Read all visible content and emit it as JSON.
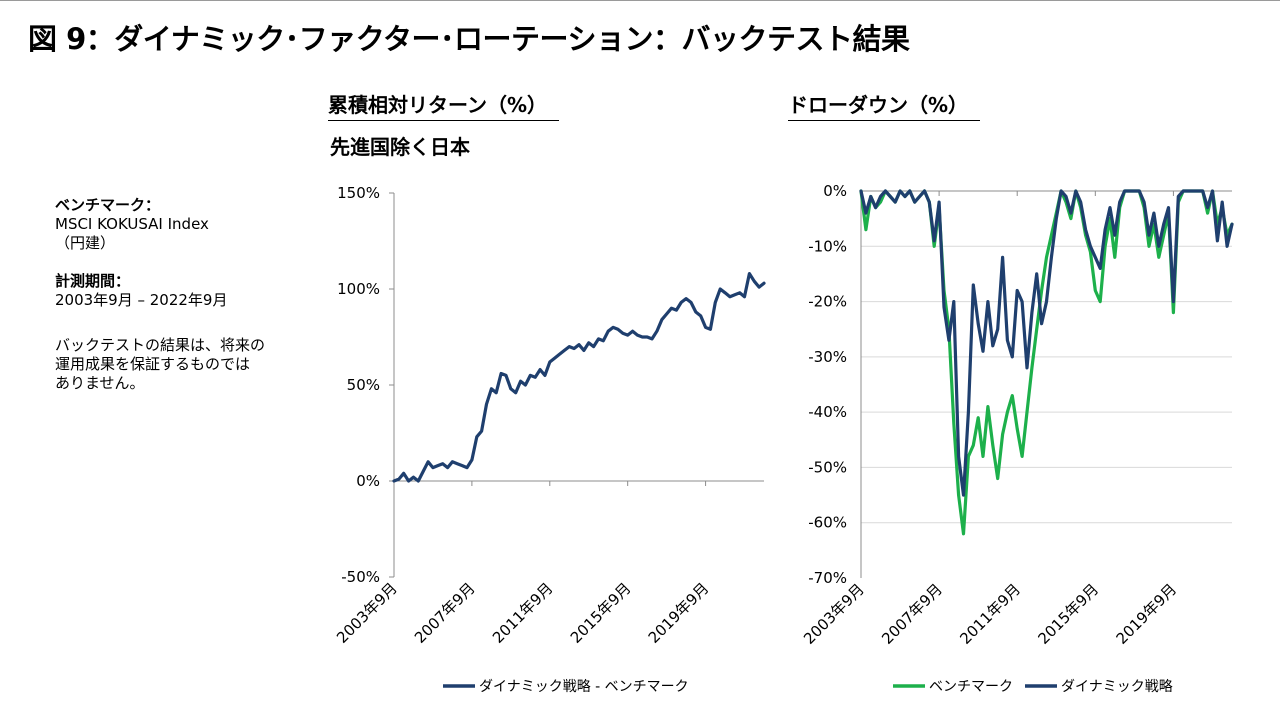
{
  "page": {
    "title": "図 9：ダイナミック･ファクター･ローテーション：バックテスト結果"
  },
  "sidebar": {
    "benchmark_label": "ベンチマーク：",
    "benchmark_value": "MSCI KOKUSAI Index",
    "benchmark_note": "（円建）",
    "period_label": "計測期間：",
    "period_value": "2003年9月 – 2022年9月",
    "disclaimer_line1": "バックテストの結果は、将来の",
    "disclaimer_line2": "運用成果を保証するものでは",
    "disclaimer_line3": "ありません。"
  },
  "left_panel": {
    "heading": "累積相対リターン（%）",
    "subheading": "先進国除く日本"
  },
  "right_panel": {
    "heading": "ドローダウン（%）"
  },
  "colors": {
    "dynamic": "#1f3f6e",
    "benchmark": "#1db04b",
    "axis": "#8c8c8c",
    "grid": "#d9d9d9"
  },
  "chart_data": [
    {
      "type": "line",
      "title": "累積相対リターン（%）",
      "subtitle": "先進国除く日本",
      "ylim": [
        -50,
        150
      ],
      "yticks": [
        -50,
        0,
        50,
        100,
        150
      ],
      "ytick_labels": [
        "-50%",
        "0%",
        "50%",
        "100%",
        "150%"
      ],
      "xlim": [
        2003.75,
        2022.75
      ],
      "xticks": [
        2003.75,
        2007.75,
        2011.75,
        2015.75,
        2019.75
      ],
      "xtick_labels": [
        "2003年9月",
        "2007年9月",
        "2011年9月",
        "2015年9月",
        "2019年9月"
      ],
      "grid": false,
      "legend": "bottom",
      "series": [
        {
          "name": "ダイナミック戦略 - ベンチマーク",
          "x": [
            2003.75,
            2004.0,
            2004.25,
            2004.5,
            2004.75,
            2005.0,
            2005.25,
            2005.5,
            2005.75,
            2006.0,
            2006.25,
            2006.5,
            2006.75,
            2007.0,
            2007.25,
            2007.5,
            2007.75,
            2008.0,
            2008.25,
            2008.5,
            2008.75,
            2009.0,
            2009.25,
            2009.5,
            2009.75,
            2010.0,
            2010.25,
            2010.5,
            2010.75,
            2011.0,
            2011.25,
            2011.5,
            2011.75,
            2012.0,
            2012.25,
            2012.5,
            2012.75,
            2013.0,
            2013.25,
            2013.5,
            2013.75,
            2014.0,
            2014.25,
            2014.5,
            2014.75,
            2015.0,
            2015.25,
            2015.5,
            2015.75,
            2016.0,
            2016.25,
            2016.5,
            2016.75,
            2017.0,
            2017.25,
            2017.5,
            2017.75,
            2018.0,
            2018.25,
            2018.5,
            2018.75,
            2019.0,
            2019.25,
            2019.5,
            2019.75,
            2020.0,
            2020.25,
            2020.5,
            2020.75,
            2021.0,
            2021.25,
            2021.5,
            2021.75,
            2022.0,
            2022.25,
            2022.5,
            2022.75
          ],
          "values": [
            0,
            1,
            4,
            0,
            2,
            0,
            5,
            10,
            7,
            8,
            9,
            7,
            10,
            9,
            8,
            7,
            11,
            23,
            26,
            40,
            48,
            46,
            56,
            55,
            48,
            46,
            52,
            50,
            55,
            54,
            58,
            55,
            62,
            64,
            66,
            68,
            70,
            69,
            71,
            68,
            72,
            70,
            74,
            73,
            78,
            80,
            79,
            77,
            76,
            78,
            76,
            75,
            75,
            74,
            78,
            84,
            87,
            90,
            89,
            93,
            95,
            93,
            88,
            86,
            80,
            79,
            93,
            100,
            98,
            96,
            97,
            98,
            96,
            108,
            104,
            101,
            103
          ]
        }
      ]
    },
    {
      "type": "line",
      "title": "ドローダウン（%）",
      "ylim": [
        -70,
        0
      ],
      "yticks": [
        -70,
        -60,
        -50,
        -40,
        -30,
        -20,
        -10,
        0
      ],
      "ytick_labels": [
        "-70%",
        "-60%",
        "-50%",
        "-40%",
        "-30%",
        "-20%",
        "-10%",
        "0%"
      ],
      "xlim": [
        2003.75,
        2022.75
      ],
      "xticks": [
        2003.75,
        2007.75,
        2011.75,
        2015.75,
        2019.75
      ],
      "xtick_labels": [
        "2003年9月",
        "2007年9月",
        "2011年9月",
        "2015年9月",
        "2019年9月"
      ],
      "grid": true,
      "legend": "bottom",
      "series": [
        {
          "name": "ベンチマーク",
          "x": [
            2003.75,
            2004.0,
            2004.25,
            2004.5,
            2004.75,
            2005.0,
            2005.25,
            2005.5,
            2005.75,
            2006.0,
            2006.25,
            2006.5,
            2006.75,
            2007.0,
            2007.25,
            2007.5,
            2007.75,
            2008.0,
            2008.25,
            2008.5,
            2008.75,
            2009.0,
            2009.25,
            2009.5,
            2009.75,
            2010.0,
            2010.25,
            2010.5,
            2010.75,
            2011.0,
            2011.25,
            2011.5,
            2011.75,
            2012.0,
            2012.25,
            2012.5,
            2012.75,
            2013.0,
            2013.25,
            2013.5,
            2013.75,
            2014.0,
            2014.25,
            2014.5,
            2014.75,
            2015.0,
            2015.25,
            2015.5,
            2015.75,
            2016.0,
            2016.25,
            2016.5,
            2016.75,
            2017.0,
            2017.25,
            2017.5,
            2017.75,
            2018.0,
            2018.25,
            2018.5,
            2018.75,
            2019.0,
            2019.25,
            2019.5,
            2019.75,
            2020.0,
            2020.25,
            2020.5,
            2020.75,
            2021.0,
            2021.25,
            2021.5,
            2021.75,
            2022.0,
            2022.25,
            2022.5,
            2022.75
          ],
          "values": [
            0,
            -7,
            -1,
            -3,
            -2,
            0,
            -1,
            -2,
            0,
            -1,
            0,
            -2,
            -1,
            0,
            -2,
            -10,
            -3,
            -18,
            -25,
            -42,
            -55,
            -62,
            -48,
            -46,
            -41,
            -48,
            -39,
            -46,
            -52,
            -44,
            -40,
            -37,
            -43,
            -48,
            -40,
            -32,
            -25,
            -18,
            -12,
            -8,
            -4,
            0,
            -2,
            -5,
            0,
            -3,
            -8,
            -11,
            -18,
            -20,
            -10,
            -5,
            -12,
            -3,
            0,
            0,
            0,
            0,
            -3,
            -10,
            -6,
            -12,
            -8,
            -4,
            -22,
            -2,
            0,
            0,
            0,
            0,
            0,
            -4,
            0,
            -6,
            -3,
            -8,
            -6
          ]
        },
        {
          "name": "ダイナミック戦略",
          "x": [
            2003.75,
            2004.0,
            2004.25,
            2004.5,
            2004.75,
            2005.0,
            2005.25,
            2005.5,
            2005.75,
            2006.0,
            2006.25,
            2006.5,
            2006.75,
            2007.0,
            2007.25,
            2007.5,
            2007.75,
            2008.0,
            2008.25,
            2008.5,
            2008.75,
            2009.0,
            2009.25,
            2009.5,
            2009.75,
            2010.0,
            2010.25,
            2010.5,
            2010.75,
            2011.0,
            2011.25,
            2011.5,
            2011.75,
            2012.0,
            2012.25,
            2012.5,
            2012.75,
            2013.0,
            2013.25,
            2013.5,
            2013.75,
            2014.0,
            2014.25,
            2014.5,
            2014.75,
            2015.0,
            2015.25,
            2015.5,
            2015.75,
            2016.0,
            2016.25,
            2016.5,
            2016.75,
            2017.0,
            2017.25,
            2017.5,
            2017.75,
            2018.0,
            2018.25,
            2018.5,
            2018.75,
            2019.0,
            2019.25,
            2019.5,
            2019.75,
            2020.0,
            2020.25,
            2020.5,
            2020.75,
            2021.0,
            2021.25,
            2021.5,
            2021.75,
            2022.0,
            2022.25,
            2022.5,
            2022.75
          ],
          "values": [
            0,
            -4,
            -1,
            -3,
            -1,
            0,
            -1,
            -2,
            0,
            -1,
            0,
            -2,
            -1,
            0,
            -2,
            -9,
            -2,
            -21,
            -27,
            -20,
            -48,
            -55,
            -40,
            -17,
            -24,
            -29,
            -20,
            -28,
            -25,
            -12,
            -27,
            -30,
            -18,
            -20,
            -32,
            -22,
            -15,
            -24,
            -20,
            -12,
            -5,
            0,
            -1,
            -4,
            0,
            -2,
            -7,
            -10,
            -12,
            -14,
            -7,
            -3,
            -8,
            -2,
            0,
            0,
            0,
            0,
            -2,
            -8,
            -4,
            -10,
            -6,
            -3,
            -20,
            -1,
            0,
            0,
            0,
            0,
            0,
            -3,
            0,
            -9,
            -2,
            -10,
            -6
          ]
        }
      ]
    }
  ]
}
